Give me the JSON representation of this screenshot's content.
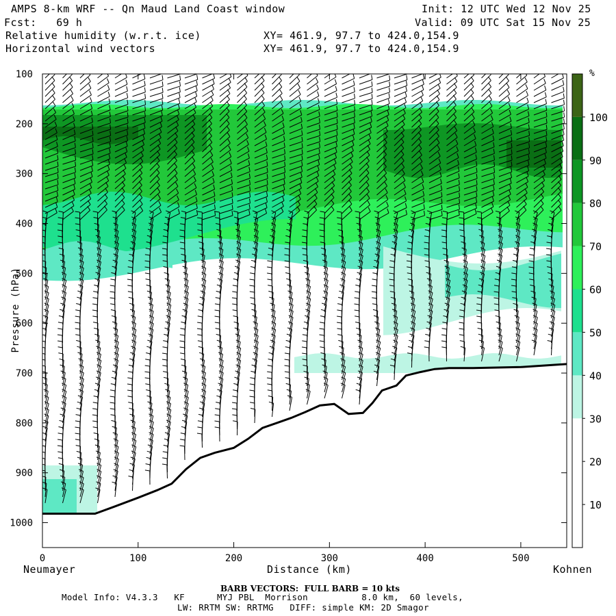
{
  "header": {
    "title": "AMPS 8-km WRF -- Qn Maud Land Coast window",
    "fcst": "Fcst:   69 h",
    "init": "Init: 12 UTC Wed 12 Nov 25",
    "valid": "Valid: 09 UTC Sat 15 Nov 25",
    "field1": "Relative humidity (w.r.t. ice)",
    "field2": "Horizontal wind vectors",
    "xy1": "XY= 461.9, 97.7 to 424.0,154.9",
    "xy2": "XY= 461.9, 97.7 to 424.0,154.9"
  },
  "footer": {
    "barb": "BARB VECTORS:  FULL BARB = 10 kts",
    "model1": "Model Info: V4.3.3   KF      MYJ PBL  Morrison          8.0 km,  60 levels,",
    "model2": "LW: RRTM SW: RRTMG   DIFF: simple KM: 2D Smagor"
  },
  "colors": {
    "rh_bins": [
      "#ffffff",
      "#ffffff",
      "#ffffff",
      "#bdf5e4",
      "#5ee8c4",
      "#1ee08e",
      "#2ef05a",
      "#22c83a",
      "#0e9623",
      "#0a6e14",
      "#3c6416"
    ],
    "terrain_line": "#000000",
    "barb": "#000000"
  },
  "chart_data": {
    "type": "heatmap",
    "title": "Relative humidity (w.r.t. ice) cross-section with horizontal wind barbs",
    "xlabel": "Distance (km)",
    "ylabel": "Pressure (hPa)",
    "xlim": [
      0,
      548
    ],
    "ylim": [
      1050,
      100
    ],
    "x_ticks": [
      0,
      100,
      200,
      300,
      400,
      500
    ],
    "x_tick_labels": [
      "0",
      "100",
      "200",
      "300",
      "400",
      "500"
    ],
    "y_ticks": [
      100,
      200,
      300,
      400,
      500,
      600,
      700,
      800,
      900,
      1000
    ],
    "y_tick_labels": [
      "100",
      "200",
      "300",
      "400",
      "500",
      "600",
      "700",
      "800",
      "900",
      "1000"
    ],
    "left_endpoint": "Neumayer",
    "right_endpoint": "Kohnen",
    "colorbar": {
      "unit": "%",
      "levels": [
        10,
        20,
        30,
        40,
        50,
        60,
        70,
        80,
        90,
        100
      ],
      "level_labels": [
        "10",
        "20",
        "30",
        "40",
        "50",
        "60",
        "70",
        "80",
        "90",
        "100"
      ]
    },
    "surface_pressure": {
      "distance_km": [
        0,
        30,
        55,
        75,
        100,
        120,
        135,
        150,
        165,
        180,
        200,
        215,
        230,
        245,
        260,
        275,
        290,
        305,
        320,
        335,
        345,
        355,
        370,
        380,
        395,
        410,
        425,
        450,
        500,
        548
      ],
      "pressure_hpa": [
        982,
        982,
        982,
        968,
        950,
        935,
        922,
        893,
        870,
        860,
        850,
        832,
        810,
        800,
        790,
        778,
        765,
        762,
        782,
        780,
        760,
        735,
        725,
        705,
        698,
        692,
        690,
        690,
        688,
        682
      ]
    },
    "rh_regions": [
      {
        "desc": "dry lower troposphere",
        "rh_pct": 15
      },
      {
        "desc": "high-RH upper layer core 200-280 hPa",
        "rh_pct": 95
      },
      {
        "desc": "moist layer 300-450 hPa west",
        "rh_pct": 65
      },
      {
        "desc": "near-surface moist layer west of 40 km",
        "rh_pct": 45
      },
      {
        "desc": "mid-level moist tongue east of 380 km, 400-600 hPa",
        "rh_pct": 40
      }
    ]
  }
}
